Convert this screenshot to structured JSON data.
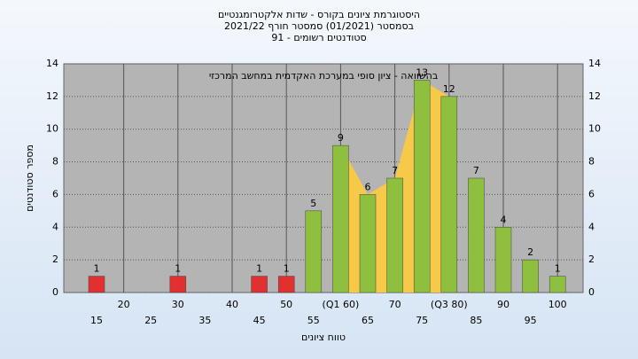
{
  "chart_data": {
    "type": "bar",
    "title": [
      "היסטוגרמת ציונים בקורס - שדות אלקטרומגנטיים",
      "בסמסטר  (01/2021)  סמסטר חורף  2021/22",
      "סטודנטים רשומים - 91"
    ],
    "annotation": "בהשוואה - ציון סופי במערכת האקדמית במחשב המרכזי",
    "x_label": "טווח ציונים",
    "y_label": "מספר סטודנטים",
    "categories": [
      "15",
      "20",
      "25",
      "30",
      "35",
      "40",
      "45",
      "50",
      "55",
      "(Q1 60)",
      "65",
      "70",
      "75",
      "(Q3 80)",
      "85",
      "90",
      "95",
      "100"
    ],
    "values": [
      1,
      0,
      0,
      1,
      0,
      0,
      1,
      1,
      5,
      9,
      6,
      7,
      13,
      12,
      7,
      4,
      2,
      1
    ],
    "fail_color": "#e03030",
    "pass_color": "#8fbf3f",
    "iqr_color": "#f7c948",
    "ylim": [
      0,
      14
    ],
    "yticks": [
      0,
      2,
      4,
      6,
      8,
      10,
      12,
      14
    ],
    "grid": true
  }
}
